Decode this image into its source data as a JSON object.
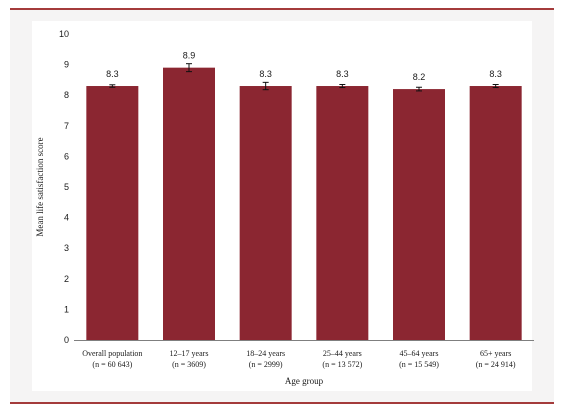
{
  "chart_data": {
    "type": "bar",
    "ylabel": "Mean life satisfaction score",
    "xlabel": "Age group",
    "ylim": [
      0,
      10
    ],
    "yticks": [
      "0",
      "1",
      "2",
      "3",
      "4",
      "5",
      "6",
      "7",
      "8",
      "9",
      "10"
    ],
    "grid": false,
    "bar_color": "#8b2631",
    "categories": [
      {
        "line1": "Overall population",
        "line2": "(n = 60 643)"
      },
      {
        "line1": "12–17 years",
        "line2": "(n = 3609)"
      },
      {
        "line1": "18–24 years",
        "line2": "(n = 2999)"
      },
      {
        "line1": "25–44 years",
        "line2": "(n = 13 572)"
      },
      {
        "line1": "45–64 years",
        "line2": "(n = 15 549)"
      },
      {
        "line1": "65+ years",
        "line2": "(n = 24 914)"
      }
    ],
    "values": [
      8.3,
      8.9,
      8.3,
      8.3,
      8.2,
      8.3
    ],
    "value_labels": [
      "8.3",
      "8.9",
      "8.3",
      "8.3",
      "8.2",
      "8.3"
    ],
    "error": [
      0.04,
      0.13,
      0.12,
      0.05,
      0.06,
      0.05
    ]
  }
}
